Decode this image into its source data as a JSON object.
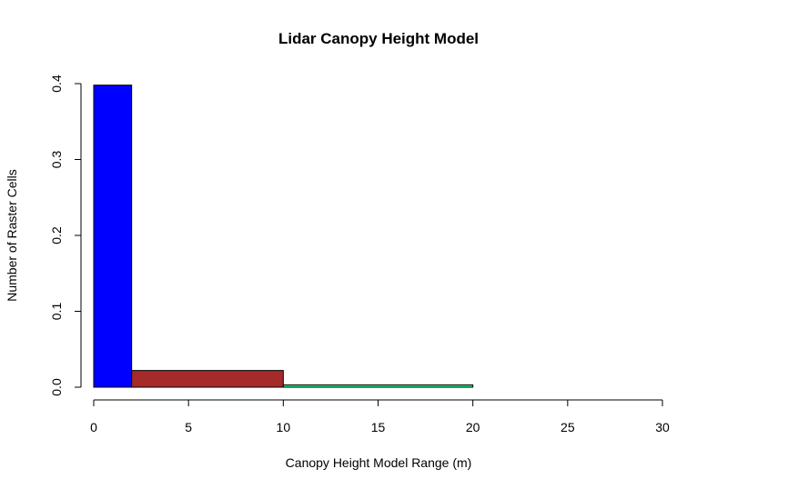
{
  "chart_data": {
    "type": "bar",
    "title": "Lidar Canopy Height Model",
    "xlabel": "Canopy Height Model Range (m)",
    "ylabel": "Number of Raster Cells",
    "xlim": [
      0,
      30
    ],
    "ylim": [
      0,
      0.4
    ],
    "x_ticks": [
      "0",
      "5",
      "10",
      "15",
      "20",
      "25",
      "30"
    ],
    "y_ticks": [
      "0.0",
      "0.1",
      "0.2",
      "0.3",
      "0.4"
    ],
    "grid": false,
    "bins": [
      {
        "x0": 0,
        "x1": 2,
        "value": 0.398,
        "color": "#0000ff"
      },
      {
        "x0": 2,
        "x1": 10,
        "value": 0.022,
        "color": "#a52a2a"
      },
      {
        "x0": 10,
        "x1": 20,
        "value": 0.003,
        "color": "#00ff7f"
      },
      {
        "x0": 20,
        "x1": 30,
        "value": 0.0,
        "color": "#ffffff"
      }
    ]
  }
}
